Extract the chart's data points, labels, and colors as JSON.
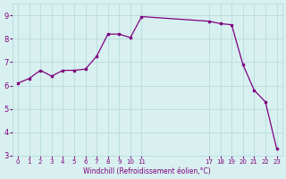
{
  "x": [
    0,
    1,
    2,
    3,
    4,
    5,
    6,
    7,
    8,
    9,
    10,
    11,
    17,
    18,
    19,
    20,
    21,
    22,
    23
  ],
  "y": [
    6.1,
    6.3,
    6.65,
    6.4,
    6.65,
    6.65,
    6.7,
    7.25,
    8.2,
    8.2,
    8.05,
    8.95,
    8.75,
    8.65,
    8.6,
    6.9,
    5.8,
    5.3,
    3.3
  ],
  "background_color": "#d8f0f0",
  "line_color": "#800080",
  "marker_color": "#800080",
  "grid_color": "#b0d8d8",
  "xlabel": "Windchill (Refroidissement éolien,°C)",
  "ylim": [
    3,
    9.5
  ],
  "xlim": [
    -0.5,
    23.5
  ],
  "yticks": [
    3,
    4,
    5,
    6,
    7,
    8,
    9
  ],
  "xticks": [
    0,
    1,
    2,
    3,
    4,
    5,
    6,
    7,
    8,
    9,
    10,
    11,
    17,
    18,
    19,
    20,
    21,
    22,
    23
  ],
  "xtick_labels": [
    "0",
    "1",
    "2",
    "3",
    "4",
    "5",
    "6",
    "7",
    "8",
    "9",
    "10",
    "11",
    "17",
    "18",
    "19",
    "20",
    "21",
    "22",
    "23"
  ],
  "font_color": "#800080",
  "axes_label_color": "#800080"
}
